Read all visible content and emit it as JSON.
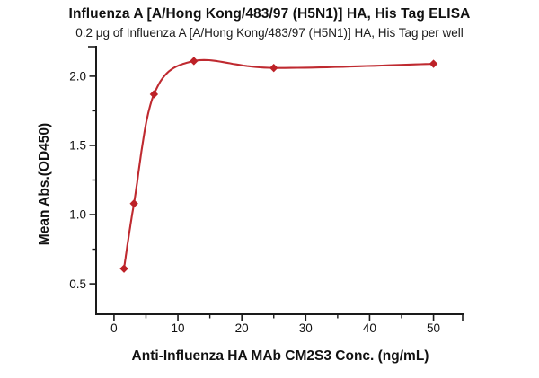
{
  "chart_data": {
    "type": "scatter-line",
    "title": "Influenza A [A/Hong Kong/483/97 (H5N1)] HA, His Tag ELISA",
    "subtitle": "0.2 μg of Influenza A [A/Hong Kong/483/97 (H5N1)] HA, His Tag per well",
    "xlabel": "Anti-Influenza HA MAb CM2S3 Conc. (ng/mL)",
    "ylabel": "Mean Abs.(OD450)",
    "x": [
      1.5625,
      3.125,
      6.25,
      12.5,
      25,
      50
    ],
    "y": [
      0.61,
      1.08,
      1.87,
      2.11,
      2.06,
      2.09
    ],
    "marker": "diamond",
    "line_color": "#bf2a30",
    "marker_color": "#bd2127",
    "axis_color": "#1a1a1a",
    "xlim": [
      -2.8,
      54.7
    ],
    "ylim": [
      0.28,
      2.22
    ],
    "x_major_ticks": [
      0,
      10,
      20,
      30,
      40,
      50
    ],
    "x_tick_labels": [
      "0",
      "10",
      "20",
      "30",
      "40",
      "50"
    ],
    "x_minor_ticks": [
      5,
      15,
      25,
      35,
      45
    ],
    "y_major_ticks": [
      0.5,
      1.0,
      1.5,
      2.0
    ],
    "y_tick_labels": [
      "0.5",
      "1.0",
      "1.5",
      "2.0"
    ],
    "y_minor_ticks": [
      0.75,
      1.25,
      1.75
    ],
    "grid": false,
    "legend": null
  }
}
